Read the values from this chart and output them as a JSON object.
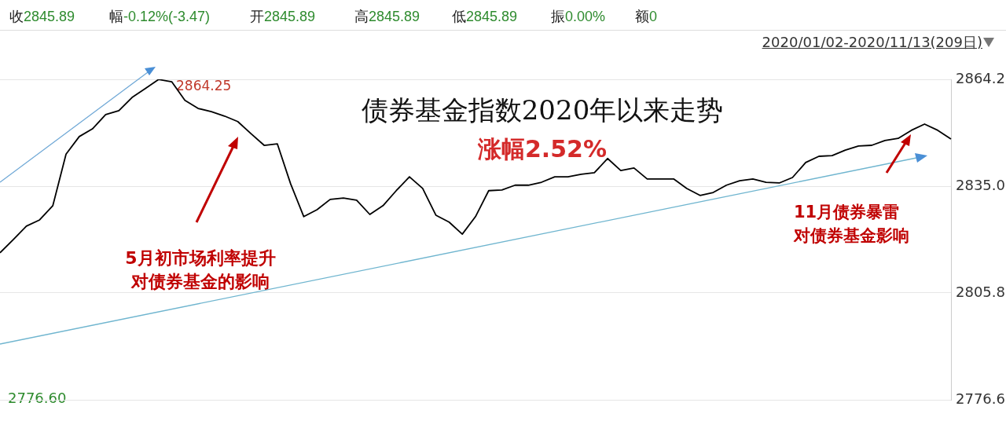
{
  "chart_data": {
    "type": "line",
    "title": "债券基金指数2020年以来走势",
    "subtitle": "涨幅2.52%",
    "categories": [
      null,
      null,
      null,
      null,
      null,
      null,
      null,
      null,
      null,
      null,
      null,
      null,
      null,
      null,
      null,
      null,
      null,
      null,
      null,
      null,
      null,
      null,
      null,
      null,
      null,
      null,
      null,
      null,
      null,
      null,
      null,
      null,
      null,
      null,
      null,
      null,
      null,
      null,
      null,
      null,
      null,
      null,
      null,
      null,
      null,
      null,
      null,
      null,
      null,
      null,
      null,
      null,
      null,
      null,
      null,
      null,
      null,
      null,
      null,
      null,
      null,
      null,
      null,
      null,
      null,
      null,
      null,
      null,
      null,
      null,
      null,
      null,
      null
    ],
    "series": [
      {
        "color": "#000000",
        "values": [
          2816.8,
          2820.4,
          2824.1,
          2825.8,
          2829.7,
          2843.8,
          2848.6,
          2850.7,
          2854.6,
          2855.7,
          2859.3,
          2861.7,
          2864.2,
          2863.6,
          2858.5,
          2856.3,
          2855.4,
          2854.2,
          2852.7,
          2849.4,
          2846.2,
          2846.6,
          2835.7,
          2826.7,
          2828.6,
          2831.4,
          2831.8,
          2831.2,
          2827.3,
          2829.7,
          2833.8,
          2837.6,
          2834.4,
          2827.1,
          2825.2,
          2821.9,
          2826.7,
          2833.8,
          2834.0,
          2835.3,
          2835.3,
          2836.1,
          2837.6,
          2837.6,
          2838.3,
          2838.7,
          2842.6,
          2839.3,
          2840.0,
          2837.0,
          2837.0,
          2837.0,
          2834.4,
          2832.5,
          2833.3,
          2835.3,
          2836.5,
          2837.0,
          2836.1,
          2835.9,
          2837.4,
          2841.5,
          2843.2,
          2843.4,
          2844.9,
          2846.0,
          2846.2,
          2847.5,
          2848.1,
          2850.3,
          2852.0,
          2850.3,
          2847.9
        ]
      }
    ],
    "ylim": [
      2776.6,
      2864.25
    ],
    "yticks": [
      {
        "value": 2864.25,
        "label": "2864.2"
      },
      {
        "value": 2835.03,
        "label": "2835.0"
      },
      {
        "value": 2805.82,
        "label": "2805.8"
      },
      {
        "value": 2776.6,
        "label": "2776.6"
      }
    ],
    "grid": "y",
    "tick_labels": "y",
    "marker": "none",
    "line_style": "solid",
    "annotations": [
      "收2845.89",
      "幅-0.12%(-3.47)",
      "开2845.89",
      "高2845.89",
      "低2845.89",
      "振0.00%",
      "额0",
      "2020/01/02-2020/11/13(209日)",
      "2776.60",
      "5月初市场利率提升",
      "对债券基金的影响",
      "11月债券暴雷",
      "对债券基金影响",
      "2864.25"
    ]
  }
}
